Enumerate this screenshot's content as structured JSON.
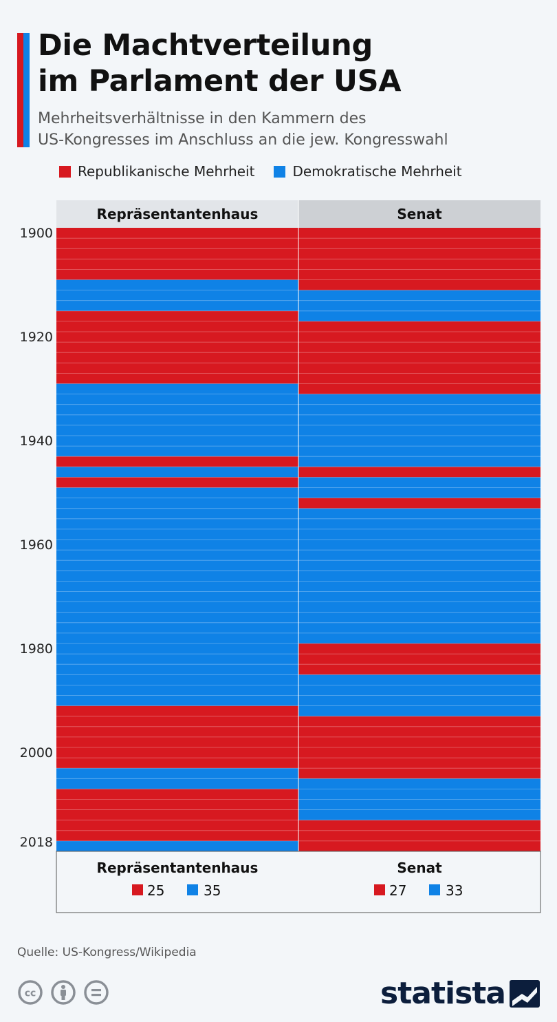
{
  "title": "Die Machtverteilung\nim Parlament der USA",
  "subtitle": "Mehrheitsverhältnisse in den Kammern des\nUS-Kongresses im Anschluss an die jew. Kongresswahl",
  "legend": {
    "republican": "Republikanische Mehrheit",
    "democratic": "Demokratische Mehrheit"
  },
  "colors": {
    "republican": "#d71920",
    "democratic": "#0f82e6",
    "accent_red": "#d71920",
    "accent_blue": "#0f82e6",
    "header_house_bg": "#e2e5e9",
    "header_senate_bg": "#cdd0d4"
  },
  "chart_data": {
    "type": "heatmap",
    "x": [
      1900,
      1902,
      1904,
      1906,
      1908,
      1910,
      1912,
      1914,
      1916,
      1918,
      1920,
      1922,
      1924,
      1926,
      1928,
      1930,
      1932,
      1934,
      1936,
      1938,
      1940,
      1942,
      1944,
      1946,
      1948,
      1950,
      1952,
      1954,
      1956,
      1958,
      1960,
      1962,
      1964,
      1966,
      1968,
      1970,
      1972,
      1974,
      1976,
      1978,
      1980,
      1982,
      1984,
      1986,
      1988,
      1990,
      1992,
      1994,
      1996,
      1998,
      2000,
      2002,
      2004,
      2006,
      2008,
      2010,
      2012,
      2014,
      2016,
      2018
    ],
    "series": [
      {
        "name": "Repräsentantenhaus",
        "values": [
          "R",
          "R",
          "R",
          "R",
          "R",
          "D",
          "D",
          "D",
          "R",
          "R",
          "R",
          "R",
          "R",
          "R",
          "R",
          "D",
          "D",
          "D",
          "D",
          "D",
          "D",
          "D",
          "R",
          "D",
          "R",
          "D",
          "D",
          "D",
          "D",
          "D",
          "D",
          "D",
          "D",
          "D",
          "D",
          "D",
          "D",
          "D",
          "D",
          "D",
          "D",
          "D",
          "D",
          "D",
          "D",
          "D",
          "R",
          "R",
          "R",
          "R",
          "R",
          "R",
          "D",
          "D",
          "R",
          "R",
          "R",
          "R",
          "R",
          "D"
        ]
      },
      {
        "name": "Senat",
        "values": [
          "R",
          "R",
          "R",
          "R",
          "R",
          "R",
          "D",
          "D",
          "D",
          "R",
          "R",
          "R",
          "R",
          "R",
          "R",
          "R",
          "D",
          "D",
          "D",
          "D",
          "D",
          "D",
          "D",
          "R",
          "D",
          "D",
          "R",
          "D",
          "D",
          "D",
          "D",
          "D",
          "D",
          "D",
          "D",
          "D",
          "D",
          "D",
          "D",
          "D",
          "R",
          "R",
          "R",
          "D",
          "D",
          "D",
          "D",
          "R",
          "R",
          "R",
          "R",
          "R",
          "R",
          "D",
          "D",
          "D",
          "D",
          "R",
          "R",
          "R"
        ]
      }
    ],
    "y_tick_labels": [
      "1900",
      "1920",
      "1940",
      "1960",
      "1980",
      "2000",
      "2018"
    ],
    "y_ticks": [
      1900,
      1920,
      1940,
      1960,
      1980,
      2000,
      2018
    ],
    "column_headers": [
      "Repräsentantenhaus",
      "Senat"
    ],
    "totals": {
      "house": {
        "label": "Repräsentantenhaus",
        "republican": "25",
        "democratic": "35"
      },
      "senate": {
        "label": "Senat",
        "republican": "27",
        "democratic": "33"
      }
    }
  },
  "source": "Quelle: US-Kongress/Wikipedia",
  "brand": "statista",
  "icons": [
    "cc-icon",
    "attribution-icon",
    "no-derivatives-icon",
    "statista-logo-icon"
  ]
}
